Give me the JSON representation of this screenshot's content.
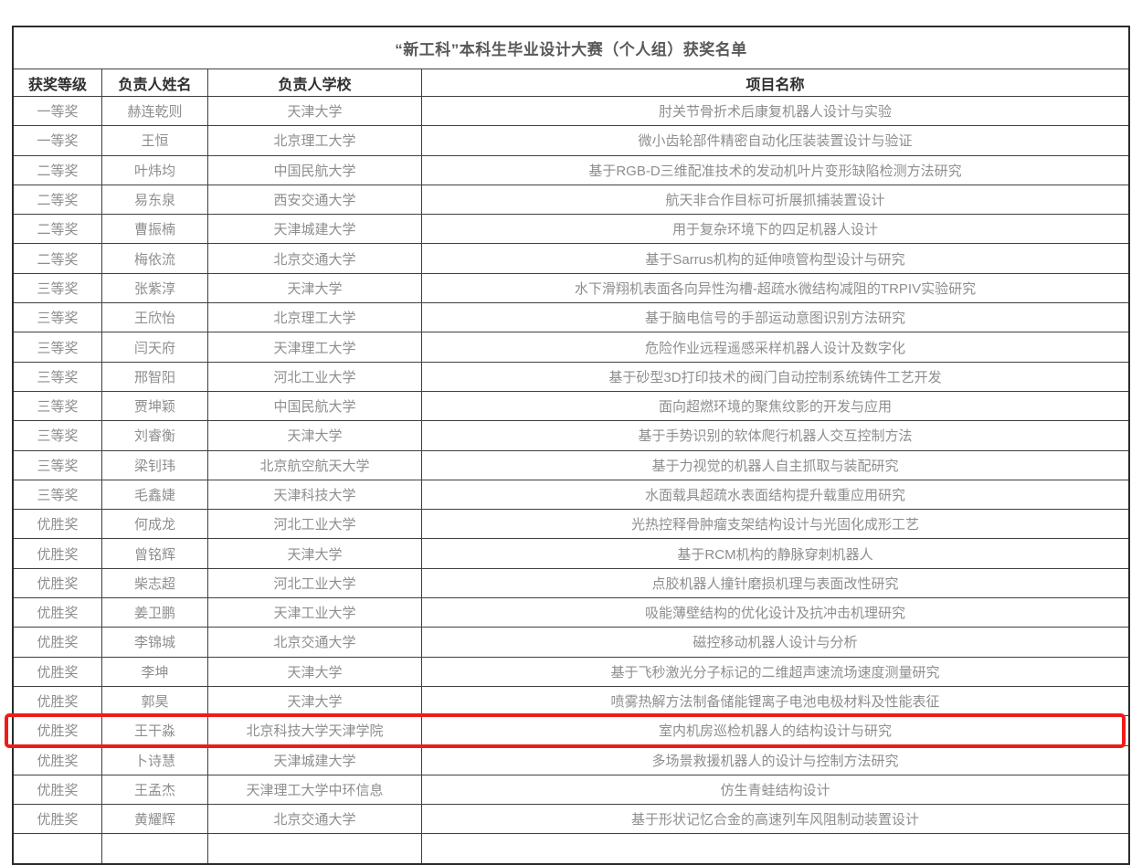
{
  "table": {
    "title": "“新工科”本科生毕业设计大赛（个人组）获奖名单",
    "columns": [
      "获奖等级",
      "负责人姓名",
      "负责人学校",
      "项目名称"
    ],
    "rows": [
      {
        "award": "一等奖",
        "name": "赫连乾则",
        "school": "天津大学",
        "project": "肘关节骨折术后康复机器人设计与实验",
        "highlighted": false
      },
      {
        "award": "一等奖",
        "name": "王恒",
        "school": "北京理工大学",
        "project": "微小齿轮部件精密自动化压装装置设计与验证",
        "highlighted": false
      },
      {
        "award": "二等奖",
        "name": "叶炜均",
        "school": "中国民航大学",
        "project": "基于RGB-D三维配准技术的发动机叶片变形缺陷检测方法研究",
        "highlighted": false
      },
      {
        "award": "二等奖",
        "name": "易东泉",
        "school": "西安交通大学",
        "project": "航天非合作目标可折展抓捕装置设计",
        "highlighted": false
      },
      {
        "award": "二等奖",
        "name": "曹振楠",
        "school": "天津城建大学",
        "project": "用于复杂环境下的四足机器人设计",
        "highlighted": false
      },
      {
        "award": "二等奖",
        "name": "梅依流",
        "school": "北京交通大学",
        "project": "基于Sarrus机构的延伸喷管构型设计与研究",
        "highlighted": false
      },
      {
        "award": "三等奖",
        "name": "张紫淳",
        "school": "天津大学",
        "project": "水下滑翔机表面各向异性沟槽-超疏水微结构减阻的TRPIV实验研究",
        "highlighted": false
      },
      {
        "award": "三等奖",
        "name": "王欣怡",
        "school": "北京理工大学",
        "project": "基于脑电信号的手部运动意图识别方法研究",
        "highlighted": false
      },
      {
        "award": "三等奖",
        "name": "闫天府",
        "school": "天津理工大学",
        "project": "危险作业远程遥感采样机器人设计及数字化",
        "highlighted": false
      },
      {
        "award": "三等奖",
        "name": "邢智阳",
        "school": "河北工业大学",
        "project": "基于砂型3D打印技术的阀门自动控制系统铸件工艺开发",
        "highlighted": false
      },
      {
        "award": "三等奖",
        "name": "贾坤颖",
        "school": "中国民航大学",
        "project": "面向超燃环境的聚焦纹影的开发与应用",
        "highlighted": false
      },
      {
        "award": "三等奖",
        "name": "刘睿衡",
        "school": "天津大学",
        "project": "基于手势识别的软体爬行机器人交互控制方法",
        "highlighted": false
      },
      {
        "award": "三等奖",
        "name": "梁钊玮",
        "school": "北京航空航天大学",
        "project": "基于力视觉的机器人自主抓取与装配研究",
        "highlighted": false
      },
      {
        "award": "三等奖",
        "name": "毛鑫婕",
        "school": "天津科技大学",
        "project": "水面载具超疏水表面结构提升载重应用研究",
        "highlighted": false
      },
      {
        "award": "优胜奖",
        "name": "何成龙",
        "school": "河北工业大学",
        "project": "光热控释骨肿瘤支架结构设计与光固化成形工艺",
        "highlighted": false
      },
      {
        "award": "优胜奖",
        "name": "曾铭辉",
        "school": "天津大学",
        "project": "基于RCM机构的静脉穿刺机器人",
        "highlighted": false
      },
      {
        "award": "优胜奖",
        "name": "柴志超",
        "school": "河北工业大学",
        "project": "点胶机器人撞针磨损机理与表面改性研究",
        "highlighted": false
      },
      {
        "award": "优胜奖",
        "name": "姜卫鹏",
        "school": "天津工业大学",
        "project": "吸能薄壁结构的优化设计及抗冲击机理研究",
        "highlighted": false
      },
      {
        "award": "优胜奖",
        "name": "李锦城",
        "school": "北京交通大学",
        "project": "磁控移动机器人设计与分析",
        "highlighted": false
      },
      {
        "award": "优胜奖",
        "name": "李坤",
        "school": "天津大学",
        "project": "基于飞秒激光分子标记的二维超声速流场速度测量研究",
        "highlighted": false
      },
      {
        "award": "优胜奖",
        "name": "郭昊",
        "school": "天津大学",
        "project": "喷雾热解方法制备储能锂离子电池电极材料及性能表征",
        "highlighted": false
      },
      {
        "award": "优胜奖",
        "name": "王干淼",
        "school": "北京科技大学天津学院",
        "project": "室内机房巡检机器人的结构设计与研究",
        "highlighted": true
      },
      {
        "award": "优胜奖",
        "name": "卜诗慧",
        "school": "天津城建大学",
        "project": "多场景救援机器人的设计与控制方法研究",
        "highlighted": false
      },
      {
        "award": "优胜奖",
        "name": "王孟杰",
        "school": "天津理工大学中环信息",
        "project": "仿生青蛙结构设计",
        "highlighted": false
      },
      {
        "award": "优胜奖",
        "name": "黄耀辉",
        "school": "北京交通大学",
        "project": "基于形状记忆合金的高速列车风阻制动装置设计",
        "highlighted": false
      }
    ]
  },
  "colors": {
    "highlight_border": "#ed1c1a",
    "header_text": "#2e2e2e",
    "data_text": "#8e8e8e",
    "border": "#3f3f3f"
  }
}
